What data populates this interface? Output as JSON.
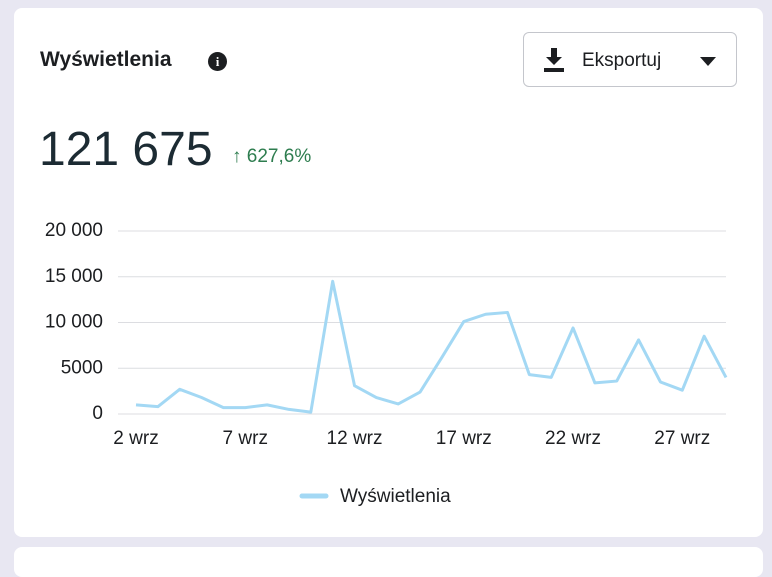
{
  "header": {
    "title": "Wyświetlenia",
    "export_button": "Eksportuj"
  },
  "summary": {
    "total": "121 675",
    "change": "↑ 627,6%"
  },
  "chart_data": {
    "type": "line",
    "categories": [
      "2 wrz",
      null,
      null,
      null,
      null,
      "7 wrz",
      null,
      null,
      null,
      null,
      "12 wrz",
      null,
      null,
      null,
      null,
      "17 wrz",
      null,
      null,
      null,
      null,
      "22 wrz",
      null,
      null,
      null,
      null,
      "27 wrz",
      null,
      null
    ],
    "series": [
      {
        "name": "Wyświetlenia",
        "color": "#a3d8f4",
        "values": [
          1000,
          800,
          2700,
          1800,
          700,
          700,
          1000,
          500,
          200,
          14500,
          3100,
          1800,
          1100,
          2400,
          6200,
          10100,
          10900,
          11100,
          4300,
          4000,
          9400,
          3400,
          3600,
          8100,
          3500,
          2600,
          8500,
          4000
        ]
      }
    ],
    "ylim": [
      0,
      20000
    ],
    "yticks": [
      0,
      {
        "value": 5000,
        "label": "5000"
      },
      {
        "value": 10000,
        "label": "10 000"
      },
      {
        "value": 15000,
        "label": "15 000"
      },
      {
        "value": 20000,
        "label": "20 000"
      }
    ],
    "grid": true,
    "legend": "bottom"
  }
}
